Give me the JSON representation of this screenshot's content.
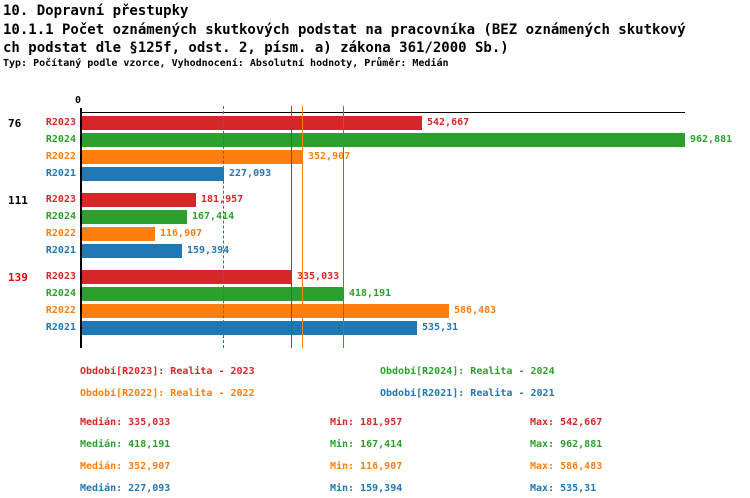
{
  "header": {
    "line1": "10. Dopravní přestupky",
    "line2": "10.1.1 Počet oznámených skutkových podstat na pracovníka (BEZ oznámených skutkový",
    "line3": "ch podstat dle §125f, odst. 2, písm. a) zákona 361/2000 Sb.)",
    "subtitle": "Typ: Počítaný podle vzorce, Vyhodnocení: Absolutní hodnoty, Průměr: Medián"
  },
  "chart_data": {
    "type": "bar",
    "orientation": "horizontal",
    "title": "10.1.1 Počet oznámených skutkových podstat na pracovníka (BEZ oznámených skutkových podstat dle §125f, odst. 2, písm. a) zákona 361/2000 Sb.)",
    "xlabel": "",
    "ylabel": "",
    "axis_origin_label": "0",
    "xlim": [
      0,
      962.881
    ],
    "grid": false,
    "legend_position": "bottom",
    "series_colors": {
      "R2023": "#d62728",
      "R2024": "#2ca02c",
      "R2022": "#ff7f0e",
      "R2021": "#1f77b4"
    },
    "groups": [
      {
        "label": "76",
        "label_color": "#000000",
        "bars": [
          {
            "series": "R2023",
            "value": 542.667,
            "display": "542,667"
          },
          {
            "series": "R2024",
            "value": 962.881,
            "display": "962,881"
          },
          {
            "series": "R2022",
            "value": 352.907,
            "display": "352,907"
          },
          {
            "series": "R2021",
            "value": 227.093,
            "display": "227,093"
          }
        ]
      },
      {
        "label": "111",
        "label_color": "#000000",
        "bars": [
          {
            "series": "R2023",
            "value": 181.957,
            "display": "181,957"
          },
          {
            "series": "R2024",
            "value": 167.414,
            "display": "167,414"
          },
          {
            "series": "R2022",
            "value": 116.907,
            "display": "116,907"
          },
          {
            "series": "R2021",
            "value": 159.394,
            "display": "159,394"
          }
        ]
      },
      {
        "label": "139",
        "label_color": "#dd0000",
        "bars": [
          {
            "series": "R2023",
            "value": 335.033,
            "display": "335,033"
          },
          {
            "series": "R2024",
            "value": 418.191,
            "display": "418,191"
          },
          {
            "series": "R2022",
            "value": 586.483,
            "display": "586,483"
          },
          {
            "series": "R2021",
            "value": 535.31,
            "display": "535,31"
          }
        ]
      }
    ],
    "median_lines": [
      {
        "series": "R2021",
        "value": 227.093,
        "style": "dashed"
      },
      {
        "series": "R2023",
        "value": 335.033,
        "style": "solid"
      },
      {
        "series": "R2022",
        "value": 352.907,
        "style": "solid"
      },
      {
        "series": "R2024",
        "value": 418.191,
        "style": "solid"
      }
    ]
  },
  "legend": [
    {
      "series": "R2023",
      "label": "Období[R2023]: Realita - 2023",
      "row": 0,
      "col": 0
    },
    {
      "series": "R2024",
      "label": "Období[R2024]: Realita - 2024",
      "row": 0,
      "col": 1
    },
    {
      "series": "R2022",
      "label": "Období[R2022]: Realita - 2022",
      "row": 1,
      "col": 0
    },
    {
      "series": "R2021",
      "label": "Období[R2021]: Realita - 2021",
      "row": 1,
      "col": 1
    }
  ],
  "stats": {
    "median_label": "Medián",
    "min_label": "Min",
    "max_label": "Max",
    "rows": [
      {
        "series": "R2023",
        "median": "335,033",
        "min": "181,957",
        "max": "542,667"
      },
      {
        "series": "R2024",
        "median": "418,191",
        "min": "167,414",
        "max": "962,881"
      },
      {
        "series": "R2022",
        "median": "352,907",
        "min": "116,907",
        "max": "586,483"
      },
      {
        "series": "R2021",
        "median": "227,093",
        "min": "159,394",
        "max": "535,31"
      }
    ]
  }
}
